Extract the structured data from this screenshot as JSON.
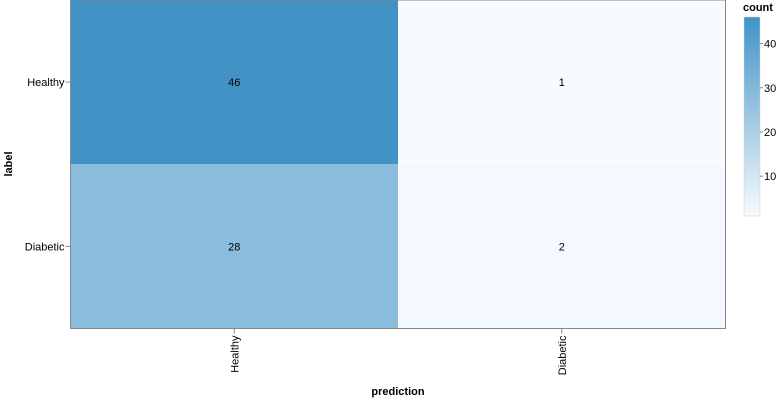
{
  "chart_data": {
    "type": "heatmap",
    "x_title": "prediction",
    "y_title": "label",
    "x_categories": [
      "Healthy",
      "Diabetic"
    ],
    "y_categories": [
      "Healthy",
      "Diabetic"
    ],
    "cells": [
      {
        "label": "Healthy",
        "prediction": "Healthy",
        "count": 46
      },
      {
        "label": "Healthy",
        "prediction": "Diabetic",
        "count": 1
      },
      {
        "label": "Diabetic",
        "prediction": "Healthy",
        "count": 28
      },
      {
        "label": "Diabetic",
        "prediction": "Diabetic",
        "count": 2
      }
    ],
    "legend": {
      "title": "count",
      "ticks": [
        10,
        20,
        30,
        40
      ],
      "domain": [
        1,
        46
      ],
      "color_low": "#f7fbff",
      "color_high": "#4292c6"
    },
    "grid": false
  }
}
